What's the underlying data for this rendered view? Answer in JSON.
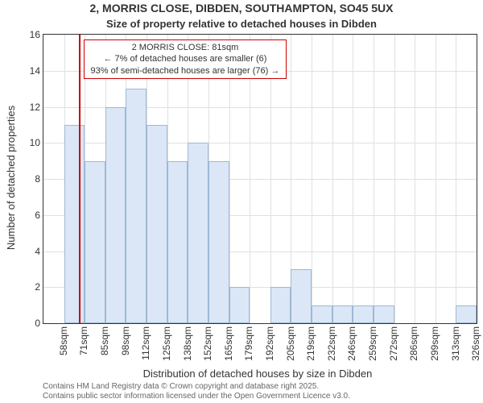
{
  "title": "2, MORRIS CLOSE, DIBDEN, SOUTHAMPTON, SO45 5UX",
  "subtitle": "Size of property relative to detached houses in Dibden",
  "ylabel": "Number of detached properties",
  "xlabel": "Distribution of detached houses by size in Dibden",
  "attribution_line1": "Contains HM Land Registry data © Crown copyright and database right 2025.",
  "attribution_line2": "Contains public sector information licensed under the Open Government Licence v3.0.",
  "annotation_line1": "2 MORRIS CLOSE: 81sqm",
  "annotation_line2": "← 7% of detached houses are smaller (6)",
  "annotation_line3": "93% of semi-detached houses are larger (76) →",
  "chart": {
    "type": "histogram",
    "ymax": 16,
    "ytick_step": 2,
    "yticks": [
      0,
      2,
      4,
      6,
      8,
      10,
      12,
      14,
      16
    ],
    "xlabels": [
      "58sqm",
      "71sqm",
      "85sqm",
      "98sqm",
      "112sqm",
      "125sqm",
      "138sqm",
      "152sqm",
      "165sqm",
      "179sqm",
      "192sqm",
      "205sqm",
      "219sqm",
      "232sqm",
      "246sqm",
      "259sqm",
      "272sqm",
      "286sqm",
      "299sqm",
      "313sqm",
      "326sqm"
    ],
    "values": [
      0,
      11,
      9,
      12,
      13,
      11,
      9,
      10,
      9,
      2,
      0,
      2,
      3,
      1,
      1,
      1,
      1,
      0,
      0,
      0,
      1
    ],
    "marker_bin_index": 2,
    "marker_fractional_offset": -0.3,
    "colors": {
      "bar_fill": "#dbe7f6",
      "bar_border": "#9db8d6",
      "grid": "#e0e0e0",
      "axis": "#333333",
      "text": "#333333",
      "attribution": "#666666",
      "marker_line": "#cc0000",
      "annotation_border": "#cc0000",
      "annotation_bg": "#ffffff"
    },
    "fonts": {
      "title_size": 14,
      "subtitle_size": 13,
      "axis_label_size": 13,
      "tick_size": 12,
      "annotation_size": 11,
      "attribution_size": 10
    }
  }
}
